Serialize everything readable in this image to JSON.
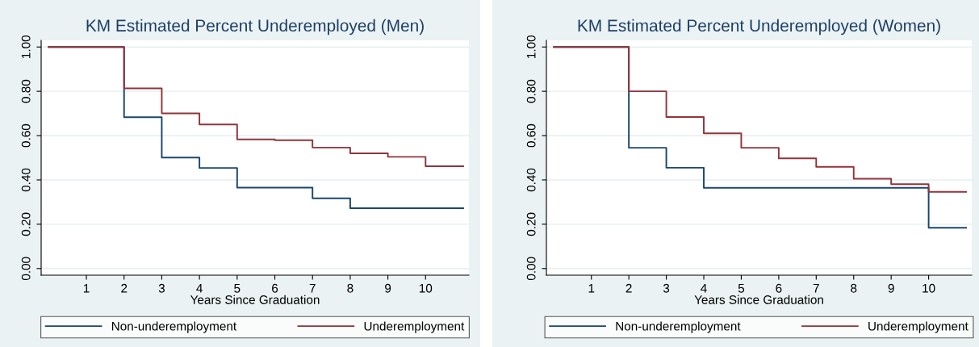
{
  "chart_data": [
    {
      "type": "step",
      "title": "KM Estimated Percent Underemployed (Men)",
      "xlabel": "Years Since Graduation",
      "x": [
        0,
        2,
        3,
        4,
        5,
        6,
        7,
        8,
        9,
        10,
        11
      ],
      "series": [
        {
          "name": "Non-underemployment",
          "color": "#1a476f",
          "x": [
            0,
            2,
            3,
            4,
            5,
            7,
            8,
            11
          ],
          "values": [
            1.0,
            0.683,
            0.501,
            0.454,
            0.365,
            0.317,
            0.272,
            0.272
          ]
        },
        {
          "name": "Underemployment",
          "color": "#90353b",
          "values": [
            1.0,
            0.813,
            0.7,
            0.65,
            0.583,
            0.579,
            0.546,
            0.52,
            0.504,
            0.462,
            0.462
          ]
        }
      ],
      "xlim": [
        -0.2,
        11.15
      ],
      "xticks": [
        1,
        2,
        3,
        4,
        5,
        6,
        7,
        8,
        9,
        10
      ],
      "ylim": [
        -0.03,
        1.03
      ],
      "yticks": [
        {
          "value": 0,
          "label": "0.00"
        },
        {
          "value": 0.2,
          "label": "0.20"
        },
        {
          "value": 0.4,
          "label": "0.40"
        },
        {
          "value": 0.6,
          "label": "0.60"
        },
        {
          "value": 0.8,
          "label": "0.80"
        },
        {
          "value": 1.0,
          "label": "1.00"
        }
      ],
      "grid": "y",
      "legend": "bottom"
    },
    {
      "type": "step",
      "title": "KM Estimated Percent Underemployed (Women)",
      "xlabel": "Years Since Graduation",
      "x": [
        0,
        2,
        3,
        4,
        5,
        6,
        7,
        8,
        9,
        10,
        11
      ],
      "series": [
        {
          "name": "Non-underemployment",
          "color": "#1a476f",
          "x": [
            0,
            2,
            3,
            4,
            10,
            11
          ],
          "values": [
            1.0,
            0.545,
            0.455,
            0.364,
            0.184,
            0.184
          ]
        },
        {
          "name": "Underemployment",
          "color": "#90353b",
          "values": [
            1.0,
            0.8,
            0.684,
            0.61,
            0.545,
            0.497,
            0.459,
            0.405,
            0.381,
            0.346,
            0.346
          ]
        }
      ],
      "xlim": [
        -0.2,
        11.15
      ],
      "xticks": [
        1,
        2,
        3,
        4,
        5,
        6,
        7,
        8,
        9,
        10
      ],
      "ylim": [
        -0.03,
        1.03
      ],
      "yticks": [
        {
          "value": 0,
          "label": "0.00"
        },
        {
          "value": 0.2,
          "label": "0.20"
        },
        {
          "value": 0.4,
          "label": "0.40"
        },
        {
          "value": 0.6,
          "label": "0.60"
        },
        {
          "value": 0.8,
          "label": "0.80"
        },
        {
          "value": 1.0,
          "label": "1.00"
        }
      ],
      "grid": "y",
      "legend": "bottom"
    }
  ]
}
